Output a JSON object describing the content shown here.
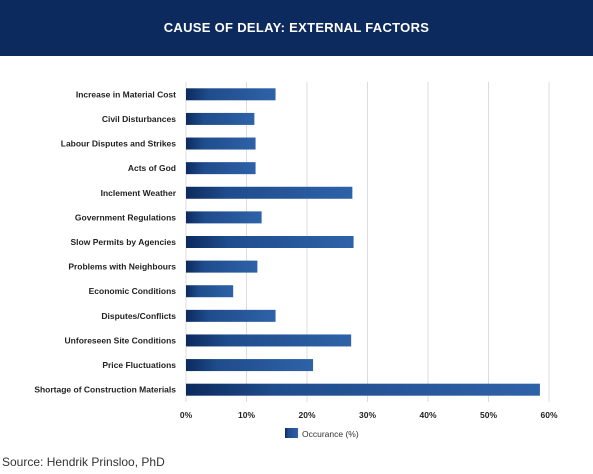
{
  "title": "CAUSE OF DELAY: EXTERNAL FACTORS",
  "source": "Source: Hendrik Prinsloo, PhD",
  "colors": {
    "header": "#0c2a5e",
    "bar_dark": "#0c2a5e",
    "bar_light": "#2e62a8"
  },
  "chart_data": {
    "type": "bar",
    "orientation": "horizontal",
    "categories": [
      "Increase in Material Cost",
      "Civil Disturbances",
      "Labour Disputes and Strikes",
      "Acts of God",
      "Inclement Weather",
      "Government Regulations",
      "Slow Permits by Agencies",
      "Problems with Neighbours",
      "Economic Conditions",
      "Disputes/Conflicts",
      "Unforeseen Site Conditions",
      "Price Fluctuations",
      "Shortage of Construction Materials"
    ],
    "series": [
      {
        "name": "Occurance (%)",
        "values": [
          14.8,
          11.3,
          11.5,
          11.5,
          27.5,
          12.5,
          27.7,
          11.8,
          7.8,
          14.8,
          27.3,
          21.0,
          58.5
        ]
      }
    ],
    "xlim": [
      0,
      60
    ],
    "xticks": [
      "0%",
      "10%",
      "20%",
      "30%",
      "40%",
      "50%",
      "60%"
    ],
    "grid": true,
    "legend": "bottom"
  }
}
